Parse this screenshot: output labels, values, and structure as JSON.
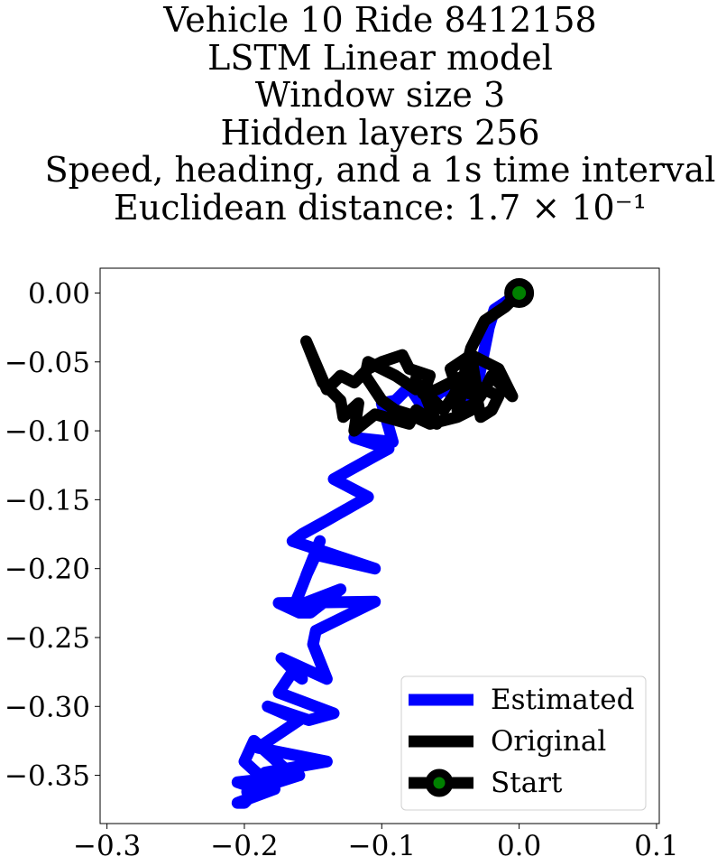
{
  "chart_data": {
    "type": "line",
    "title_lines": [
      "Vehicle 10 Ride 8412158",
      "LSTM Linear model",
      "Window size 3",
      "Hidden layers 256",
      "Speed, heading, and a 1s time interval",
      "Euclidean distance: 1.7 × 10⁻¹"
    ],
    "xlabel": "",
    "ylabel": "",
    "xlim": [
      -0.305,
      0.102
    ],
    "ylim": [
      -0.385,
      0.018
    ],
    "x_ticks": [
      -0.3,
      -0.2,
      -0.1,
      0.0,
      0.1
    ],
    "x_tick_labels": [
      "−0.3",
      "−0.2",
      "−0.1",
      "0.0",
      "0.1"
    ],
    "y_ticks": [
      0.0,
      -0.05,
      -0.1,
      -0.15,
      -0.2,
      -0.25,
      -0.3,
      -0.35
    ],
    "y_tick_labels": [
      "0.00",
      "−0.05",
      "−0.10",
      "−0.15",
      "−0.20",
      "−0.25",
      "−0.30",
      "−0.35"
    ],
    "legend_position": "lower-right",
    "series": [
      {
        "name": "Estimated",
        "color": "#0000ff",
        "x": [
          0.0,
          -0.018,
          -0.022,
          -0.025,
          -0.03,
          -0.04,
          -0.055,
          -0.07,
          -0.08,
          -0.09,
          -0.1,
          -0.092,
          -0.12,
          -0.095,
          -0.108,
          -0.135,
          -0.11,
          -0.14,
          -0.158,
          -0.165,
          -0.105,
          -0.148,
          -0.155,
          -0.145,
          -0.164,
          -0.13,
          -0.152,
          -0.16,
          -0.175,
          -0.105,
          -0.148,
          -0.15,
          -0.14,
          -0.173,
          -0.158,
          -0.165,
          -0.175,
          -0.135,
          -0.153,
          -0.183,
          -0.16,
          -0.19,
          -0.14,
          -0.185,
          -0.198,
          -0.16,
          -0.205,
          -0.19,
          -0.2,
          -0.205,
          -0.178,
          -0.2,
          -0.193,
          -0.165
        ],
        "y": [
          0.0,
          -0.012,
          -0.025,
          -0.04,
          -0.065,
          -0.078,
          -0.07,
          -0.083,
          -0.068,
          -0.078,
          -0.08,
          -0.108,
          -0.105,
          -0.113,
          -0.12,
          -0.135,
          -0.148,
          -0.165,
          -0.175,
          -0.18,
          -0.2,
          -0.19,
          -0.205,
          -0.18,
          -0.228,
          -0.215,
          -0.232,
          -0.232,
          -0.225,
          -0.224,
          -0.245,
          -0.255,
          -0.28,
          -0.265,
          -0.28,
          -0.275,
          -0.29,
          -0.305,
          -0.31,
          -0.3,
          -0.31,
          -0.33,
          -0.34,
          -0.348,
          -0.362,
          -0.35,
          -0.355,
          -0.36,
          -0.37,
          -0.37,
          -0.36,
          -0.34,
          -0.325,
          -0.35
        ]
      },
      {
        "name": "Original",
        "color": "#000000",
        "x": [
          0.0,
          -0.01,
          -0.025,
          -0.03,
          -0.035,
          -0.04,
          -0.05,
          -0.06,
          -0.07,
          -0.065,
          -0.08,
          -0.085,
          -0.1,
          -0.11,
          -0.12,
          -0.13,
          -0.14,
          -0.155,
          -0.143,
          -0.13,
          -0.128,
          -0.117,
          -0.12,
          -0.105,
          -0.08,
          -0.075,
          -0.06,
          -0.07,
          -0.055,
          -0.048,
          -0.04,
          -0.035,
          -0.05,
          -0.045,
          -0.03,
          -0.035,
          -0.015,
          -0.005,
          -0.02,
          -0.025,
          -0.04,
          -0.045,
          -0.03,
          -0.028,
          -0.02,
          -0.015,
          -0.025,
          -0.035,
          -0.045,
          -0.065,
          -0.08,
          -0.09,
          -0.1,
          -0.112,
          -0.11,
          -0.1,
          -0.09,
          -0.075,
          -0.075
        ],
        "y": [
          0.0,
          -0.01,
          -0.02,
          -0.03,
          -0.04,
          -0.06,
          -0.065,
          -0.07,
          -0.073,
          -0.06,
          -0.055,
          -0.045,
          -0.05,
          -0.055,
          -0.065,
          -0.06,
          -0.07,
          -0.035,
          -0.065,
          -0.078,
          -0.09,
          -0.08,
          -0.1,
          -0.088,
          -0.095,
          -0.085,
          -0.095,
          -0.07,
          -0.085,
          -0.075,
          -0.06,
          -0.045,
          -0.055,
          -0.07,
          -0.075,
          -0.045,
          -0.055,
          -0.075,
          -0.06,
          -0.07,
          -0.065,
          -0.085,
          -0.08,
          -0.09,
          -0.085,
          -0.075,
          -0.07,
          -0.085,
          -0.09,
          -0.095,
          -0.088,
          -0.085,
          -0.078,
          -0.06,
          -0.05,
          -0.055,
          -0.06,
          -0.07,
          -0.062
        ]
      }
    ],
    "start_point": {
      "name": "Start",
      "x": 0.0,
      "y": 0.0,
      "marker_face": "#008000",
      "marker_edge": "#000000"
    },
    "legend": [
      {
        "label": "Estimated",
        "color": "#0000ff"
      },
      {
        "label": "Original",
        "color": "#000000"
      },
      {
        "label": "Start",
        "color": "#000000",
        "marker_face": "#008000"
      }
    ]
  }
}
